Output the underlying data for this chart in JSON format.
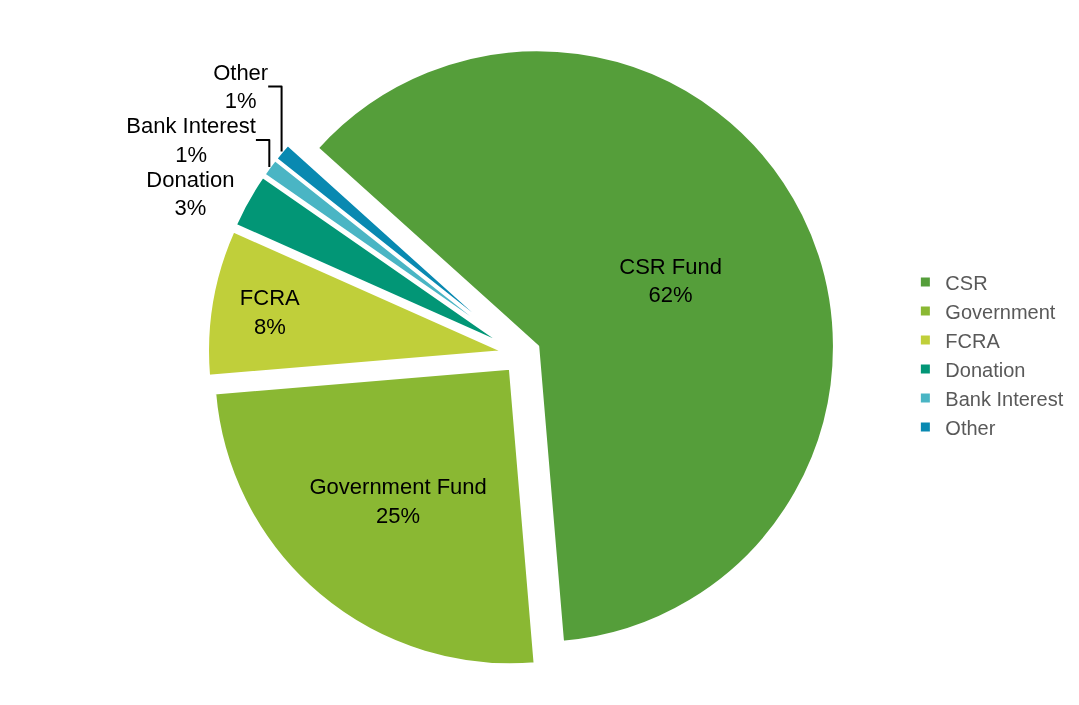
{
  "chart_data": {
    "type": "pie",
    "categories": [
      "CSR",
      "Government",
      "FCRA",
      "Donation",
      "Bank Interest",
      "Other"
    ],
    "values": [
      62,
      25,
      8,
      3,
      1,
      1
    ],
    "colors": [
      "#559e3a",
      "#8ab833",
      "#c0cf3a",
      "#029676",
      "#4ab5c4",
      "#0989b1"
    ],
    "value_labels": [
      "CSR Fund\n62%",
      "Government Fund\n25%",
      "FCRA\n8%",
      "Donation\n3%",
      "Bank Interest\n1%",
      "Other\n1%"
    ],
    "legend": "right"
  }
}
